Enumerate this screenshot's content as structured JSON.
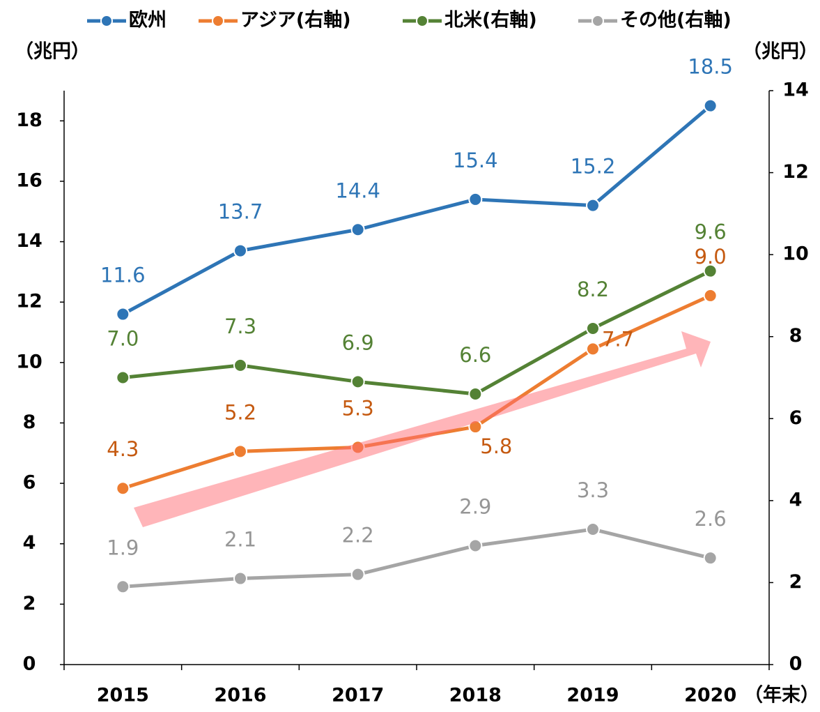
{
  "chart_data": {
    "type": "line",
    "categories": [
      "2015",
      "2016",
      "2017",
      "2018",
      "2019",
      "2020"
    ],
    "x_unit_label": "（年末）",
    "y_unit_label": "（兆円）",
    "y2_unit_label": "（兆円）",
    "ylim": [
      0,
      19
    ],
    "yticks": [
      0,
      2,
      4,
      6,
      8,
      10,
      12,
      14,
      16,
      18
    ],
    "y2lim": [
      0,
      14
    ],
    "y2ticks": [
      0,
      2,
      4,
      6,
      8,
      10,
      12,
      14
    ],
    "grid": false,
    "legend": "top",
    "series": [
      {
        "name": "欧州",
        "color": "#2e75b6",
        "label_color": "#2e75b6",
        "values": [
          11.6,
          13.7,
          14.4,
          15.4,
          15.2,
          18.5
        ],
        "value_labels": [
          "11.6",
          "13.7",
          "14.4",
          "15.4",
          "15.2",
          "18.5"
        ]
      },
      {
        "name": "アジア(右軸)",
        "color": "#ed7d31",
        "label_color": "#c55a11",
        "axis": "y2",
        "values": [
          4.3,
          5.2,
          5.3,
          5.8,
          7.7,
          9.0
        ],
        "value_labels": [
          "4.3",
          "5.2",
          "5.3",
          "5.8",
          "7.7",
          "9.0"
        ]
      },
      {
        "name": "北米(右軸)",
        "color": "#548235",
        "label_color": "#548235",
        "axis": "y2",
        "values": [
          7.0,
          7.3,
          6.9,
          6.6,
          8.2,
          9.6
        ],
        "value_labels": [
          "7.0",
          "7.3",
          "6.9",
          "6.6",
          "8.2",
          "9.6"
        ]
      },
      {
        "name": "その他(右軸)",
        "color": "#a5a5a5",
        "label_color": "#969696",
        "axis": "y2",
        "values": [
          1.9,
          2.1,
          2.2,
          2.9,
          3.3,
          2.6
        ],
        "value_labels": [
          "1.9",
          "2.1",
          "2.2",
          "2.9",
          "3.3",
          "2.6"
        ]
      }
    ]
  }
}
